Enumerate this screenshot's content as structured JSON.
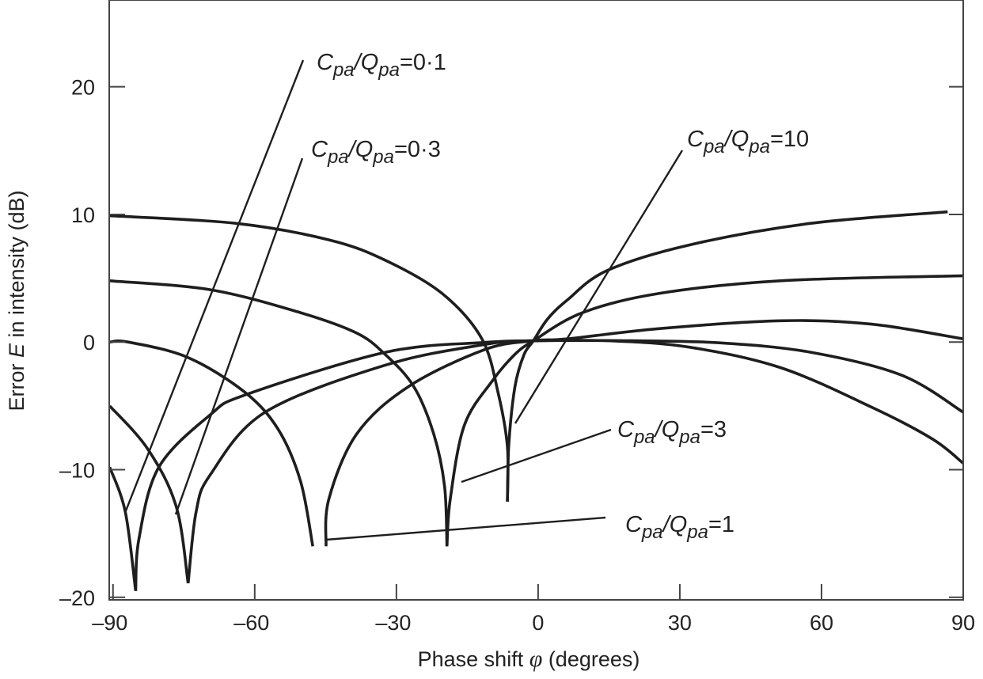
{
  "chart_data": {
    "type": "line",
    "title": "",
    "xlabel": {
      "prefix": "Phase shift ",
      "symbol": "φ",
      "suffix": " (degrees)"
    },
    "ylabel": {
      "prefix": "Error ",
      "symbol": "E",
      "suffix": " in intensity (dB)"
    },
    "xlim": [
      -90.8,
      90
    ],
    "ylim": [
      -20.2,
      26.8
    ],
    "x_ticks": [
      -90,
      -60,
      -30,
      0,
      30,
      60,
      90
    ],
    "x_tick_labels": [
      "–90",
      "–60",
      "–30",
      "0",
      "30",
      "60",
      "90"
    ],
    "y_ticks": [
      -20,
      -10,
      0,
      10,
      20
    ],
    "y_tick_labels": [
      "–20",
      "–10",
      "0",
      "10",
      "20"
    ],
    "grid": false,
    "line_color": "#1e1e1e",
    "series": [
      {
        "name": "Cpa/Qpa = 0·1",
        "label": {
          "c": "C",
          "c_sub": "pa",
          "q": "Q",
          "q_sub": "pa",
          "eq": "=",
          "value": "0·1"
        },
        "branches": [
          [
            [
              -90.7,
              -9.8
            ],
            [
              -87.4,
              -13.3
            ],
            [
              -85.2,
              -19.5
            ]
          ],
          [
            [
              -85.2,
              -19.5
            ],
            [
              -84.5,
              -15.4
            ],
            [
              -80.3,
              -9.8
            ],
            [
              -69.4,
              -5.7
            ],
            [
              -61.7,
              -4.1
            ],
            [
              -32.3,
              -0.8
            ],
            [
              -11.4,
              -0.03
            ],
            [
              -1,
              0.1
            ],
            [
              15,
              0.1
            ],
            [
              32,
              -0.4
            ],
            [
              51.3,
              -2
            ],
            [
              70.6,
              -5.1
            ],
            [
              83.5,
              -7.6
            ],
            [
              90,
              -9.5
            ]
          ]
        ]
      },
      {
        "name": "Cpa/Qpa = 0·3",
        "label": {
          "c": "C",
          "c_sub": "pa",
          "q": "Q",
          "q_sub": "pa",
          "eq": "=",
          "value": "0·3"
        },
        "branches": [
          [
            [
              -90.7,
              -5
            ],
            [
              -82.6,
              -8.4
            ],
            [
              -76.6,
              -12.9
            ],
            [
              -74.1,
              -18.9
            ]
          ],
          [
            [
              -74.1,
              -18.9
            ],
            [
              -72.4,
              -13.3
            ],
            [
              -69.4,
              -10.4
            ],
            [
              -57.8,
              -5.5
            ],
            [
              -32.3,
              -1.8
            ],
            [
              -11.4,
              -0.2
            ],
            [
              -1,
              0.1
            ],
            [
              20,
              0.1
            ],
            [
              38.4,
              -0.06
            ],
            [
              57.7,
              -0.8
            ],
            [
              77,
              -2.6
            ],
            [
              90,
              -5.5
            ]
          ]
        ]
      },
      {
        "name": "Cpa/Qpa = 1",
        "label": {
          "c": "C",
          "c_sub": "pa",
          "q": "Q",
          "q_sub": "pa",
          "eq": "=",
          "value": "1"
        },
        "branches": [
          [
            [
              -90.7,
              0
            ],
            [
              -86.8,
              0
            ],
            [
              -74.2,
              -1.2
            ],
            [
              -62.2,
              -3.9
            ],
            [
              -55.1,
              -6.8
            ],
            [
              -50.3,
              -10.9
            ],
            [
              -47.7,
              -16
            ]
          ],
          [
            [
              -44.9,
              -16
            ],
            [
              -44.3,
              -12.3
            ],
            [
              -38.4,
              -7.2
            ],
            [
              -27.5,
              -3.5
            ],
            [
              -11.4,
              -0.6
            ],
            [
              -1,
              0.1
            ],
            [
              6.2,
              0.25
            ],
            [
              25.5,
              1.05
            ],
            [
              51.3,
              1.67
            ],
            [
              70.6,
              1.4
            ],
            [
              90,
              0.25
            ]
          ]
        ]
      },
      {
        "name": "Cpa/Qpa = 3",
        "label": {
          "c": "C",
          "c_sub": "pa",
          "q": "Q",
          "q_sub": "pa",
          "eq": "=",
          "value": "3"
        },
        "branches": [
          [
            [
              -90.7,
              4.8
            ],
            [
              -69.4,
              4.1
            ],
            [
              -50.3,
              2.3
            ],
            [
              -38.4,
              0.7
            ],
            [
              -32.3,
              -1
            ],
            [
              -26.3,
              -3.5
            ],
            [
              -22.1,
              -7.2
            ],
            [
              -19.8,
              -11.3
            ],
            [
              -19.3,
              -16
            ]
          ],
          [
            [
              -19.3,
              -16
            ],
            [
              -18.6,
              -12.3
            ],
            [
              -15.6,
              -6.5
            ],
            [
              -9.6,
              -3
            ],
            [
              -5,
              -1
            ],
            [
              -1,
              0.1
            ],
            [
              9.4,
              2.3
            ],
            [
              25.5,
              3.8
            ],
            [
              51.3,
              4.8
            ],
            [
              90,
              5.2
            ]
          ]
        ]
      },
      {
        "name": "Cpa/Qpa = 10",
        "label": {
          "c": "C",
          "c_sub": "pa",
          "q": "Q",
          "q_sub": "pa",
          "eq": "=",
          "value": "10"
        },
        "branches": [
          [
            [
              -90.7,
              9.9
            ],
            [
              -64,
              9.3
            ],
            [
              -44.2,
              8
            ],
            [
              -32.3,
              6.4
            ],
            [
              -20.3,
              3.8
            ],
            [
              -11.9,
              0.25
            ],
            [
              -8.4,
              -4.1
            ],
            [
              -6.5,
              -8.2
            ],
            [
              -6.5,
              -12.5
            ]
          ],
          [
            [
              -6.5,
              -12.5
            ],
            [
              -6.2,
              -8
            ],
            [
              -4.9,
              -3.5
            ],
            [
              -3,
              -1
            ],
            [
              -1,
              0.1
            ],
            [
              2,
              1.8
            ],
            [
              6.2,
              3.3
            ],
            [
              14.6,
              5.6
            ],
            [
              31.9,
              7.6
            ],
            [
              57.7,
              9.3
            ],
            [
              86.7,
              10.2
            ]
          ]
        ]
      }
    ]
  }
}
